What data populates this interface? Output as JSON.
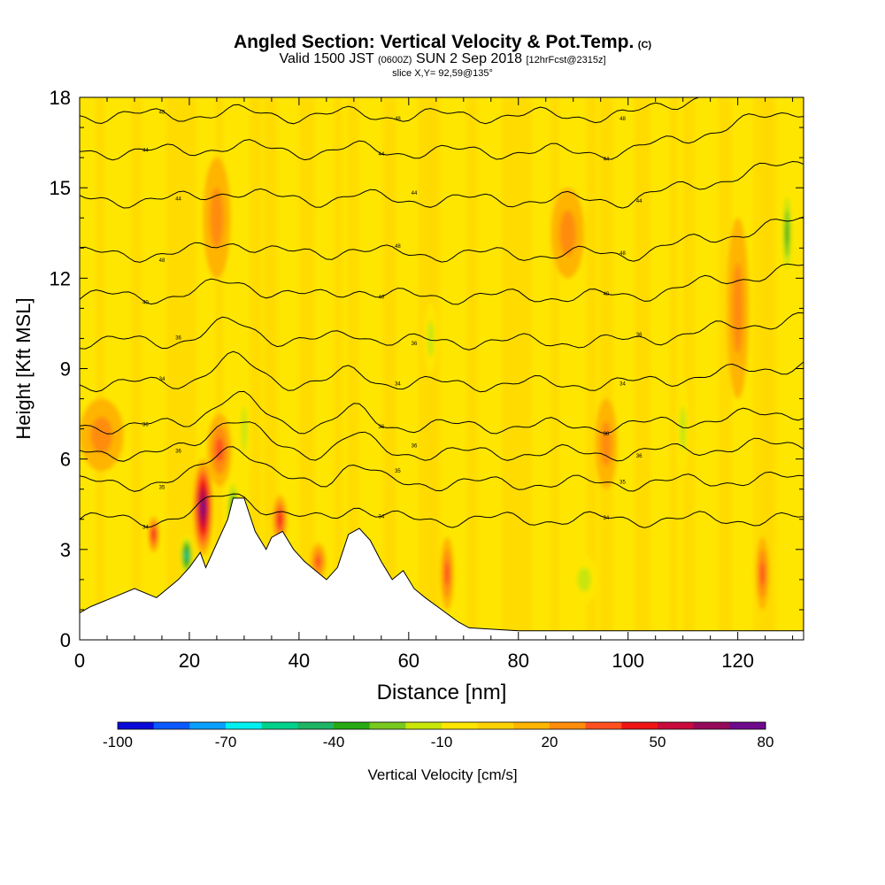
{
  "chart_data": {
    "type": "heatmap",
    "title_main": "Angled Section: Vertical Velocity & Pot.Temp.",
    "title_tag": "(C)",
    "subtitle_a": "Valid 1500 JST",
    "subtitle_b": "(0600Z)",
    "subtitle_c": "SUN 2 Sep 2018",
    "subtitle_d": "[12hrFcst@2315z]",
    "slice_label": "slice X,Y= 92,59@135°",
    "xlabel": "Distance [nm]",
    "ylabel": "Height [Kft MSL]",
    "xlim": [
      0,
      132
    ],
    "ylim": [
      0,
      18
    ],
    "xticks": [
      0,
      20,
      40,
      60,
      80,
      100,
      120
    ],
    "yticks": [
      0,
      3,
      6,
      9,
      12,
      15,
      18
    ],
    "colorbar": {
      "label": "Vertical Velocity [cm/s]",
      "tick_labels": [
        "-100",
        "-70",
        "-40",
        "-10",
        "20",
        "50",
        "80"
      ],
      "bins": [
        -100,
        -90,
        -80,
        -70,
        -60,
        -50,
        -40,
        -30,
        -20,
        -10,
        0,
        10,
        20,
        30,
        40,
        50,
        60,
        70,
        80
      ],
      "colors": [
        "#0a0ad8",
        "#0a5aff",
        "#0aa0ff",
        "#00f0f0",
        "#00d28c",
        "#1eb464",
        "#28aa14",
        "#78c81e",
        "#c8e60a",
        "#ffe600",
        "#ffd200",
        "#ffb400",
        "#ff8c0a",
        "#ff501e",
        "#f01414",
        "#c80a3c",
        "#960a5a",
        "#6e0a8c"
      ]
    },
    "terrain": [
      [
        0,
        0.9
      ],
      [
        2,
        1.1
      ],
      [
        6,
        1.4
      ],
      [
        10,
        1.7
      ],
      [
        14,
        1.4
      ],
      [
        16,
        1.7
      ],
      [
        18,
        2.0
      ],
      [
        20,
        2.4
      ],
      [
        22,
        2.9
      ],
      [
        23,
        2.4
      ],
      [
        25,
        3.2
      ],
      [
        27,
        4.0
      ],
      [
        28,
        4.7
      ],
      [
        30,
        4.7
      ],
      [
        32,
        3.6
      ],
      [
        34,
        3.0
      ],
      [
        35,
        3.4
      ],
      [
        37,
        3.6
      ],
      [
        39,
        3.0
      ],
      [
        41,
        2.6
      ],
      [
        43,
        2.3
      ],
      [
        45,
        2.0
      ],
      [
        47,
        2.4
      ],
      [
        49,
        3.5
      ],
      [
        51,
        3.7
      ],
      [
        53,
        3.3
      ],
      [
        55,
        2.6
      ],
      [
        57,
        2.0
      ],
      [
        59,
        2.3
      ],
      [
        61,
        1.7
      ],
      [
        63,
        1.4
      ],
      [
        66,
        1.0
      ],
      [
        69,
        0.6
      ],
      [
        71,
        0.4
      ],
      [
        80,
        0.3
      ],
      [
        132,
        0.3
      ]
    ],
    "theta_contours": [
      {
        "label": "34",
        "base": 4.0,
        "bump": 0.9
      },
      {
        "label": "35",
        "base": 5.2,
        "bump": 1.3
      },
      {
        "label": "36",
        "base": 6.2,
        "bump": 1.2
      },
      {
        "label": "36",
        "base": 7.1,
        "bump": 1.0
      },
      {
        "label": "34",
        "base": 8.5,
        "bump": 0.8
      },
      {
        "label": "36",
        "base": 9.9,
        "bump": 0.6
      },
      {
        "label": "40",
        "base": 11.4,
        "bump": 0.5
      },
      {
        "label": "48",
        "base": 12.8,
        "bump": 0.4
      },
      {
        "label": "44",
        "base": 14.6,
        "bump": 0.3
      },
      {
        "label": "44",
        "base": 16.2,
        "bump": 0.2
      },
      {
        "label": "48",
        "base": 17.4,
        "bump": 0.1
      }
    ],
    "updrafts": [
      {
        "x": 22.5,
        "y": 4.4,
        "sx": 1.8,
        "sy": 1.6,
        "w": 70
      },
      {
        "x": 25.5,
        "y": 6.3,
        "sx": 2.2,
        "sy": 1.2,
        "w": 35
      },
      {
        "x": 36.5,
        "y": 4.0,
        "sx": 1.3,
        "sy": 0.8,
        "w": 40
      },
      {
        "x": 43.5,
        "y": 2.6,
        "sx": 1.4,
        "sy": 0.6,
        "w": 30
      },
      {
        "x": 13.5,
        "y": 3.5,
        "sx": 1.0,
        "sy": 0.6,
        "w": 40
      },
      {
        "x": 67,
        "y": 2.2,
        "sx": 1.2,
        "sy": 1.2,
        "w": 35
      },
      {
        "x": 124.5,
        "y": 2.2,
        "sx": 1.2,
        "sy": 1.2,
        "w": 35
      },
      {
        "x": 4,
        "y": 6.8,
        "sx": 4.0,
        "sy": 1.2,
        "w": 25
      },
      {
        "x": 25,
        "y": 14.0,
        "sx": 2.5,
        "sy": 2.0,
        "w": 22
      },
      {
        "x": 89,
        "y": 13.5,
        "sx": 3.0,
        "sy": 1.5,
        "w": 20
      },
      {
        "x": 120,
        "y": 11.0,
        "sx": 2.0,
        "sy": 3.0,
        "w": 20
      },
      {
        "x": 96,
        "y": 6.5,
        "sx": 2.0,
        "sy": 1.5,
        "w": 20
      }
    ],
    "downdrafts": [
      {
        "x": 19.5,
        "y": 2.8,
        "sx": 1.2,
        "sy": 0.7,
        "w": -60
      },
      {
        "x": 28.0,
        "y": 4.2,
        "sx": 1.2,
        "sy": 1.2,
        "w": -55
      },
      {
        "x": 30.0,
        "y": 7.0,
        "sx": 1.0,
        "sy": 1.5,
        "w": -25
      },
      {
        "x": 129,
        "y": 13.5,
        "sx": 1.0,
        "sy": 1.6,
        "w": -40
      },
      {
        "x": 92,
        "y": 2.0,
        "sx": 2.5,
        "sy": 0.8,
        "w": -25
      },
      {
        "x": 64,
        "y": 10.0,
        "sx": 1.2,
        "sy": 1.2,
        "w": -20
      },
      {
        "x": 110,
        "y": 7.0,
        "sx": 1.2,
        "sy": 1.5,
        "w": -20
      }
    ]
  }
}
